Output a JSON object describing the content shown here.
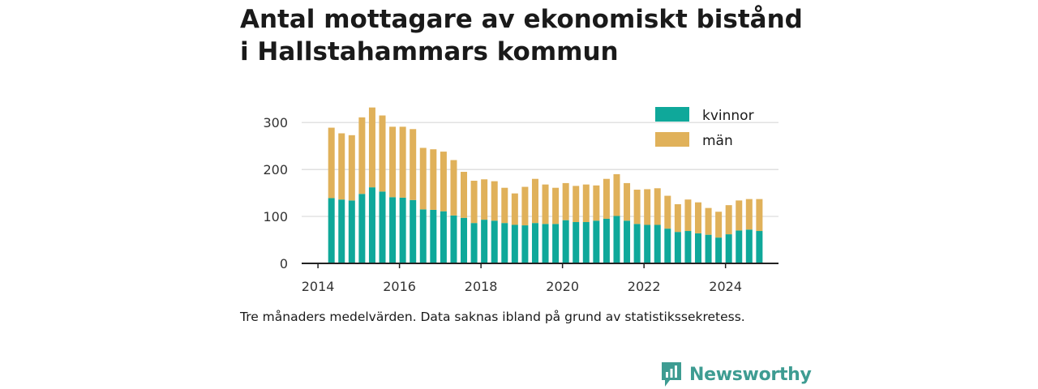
{
  "chart_data": {
    "type": "bar",
    "stacked": true,
    "title_lines": [
      "Antal mottagare av ekonomiskt bistånd",
      "i Hallstahammars kommun"
    ],
    "note": "Tre månaders medelvärden. Data saknas ibland på grund av statistikssekretess.",
    "xlabel": "",
    "ylabel": "",
    "ylim": [
      0,
      340
    ],
    "xlim": [
      2013.6,
      2025.3
    ],
    "y_ticks": [
      0,
      100,
      200,
      300
    ],
    "x_ticks": [
      2014,
      2016,
      2018,
      2020,
      2022,
      2024
    ],
    "grid": true,
    "legend_position": "top-right",
    "x": [
      2014.33,
      2014.58,
      2014.83,
      2015.08,
      2015.33,
      2015.58,
      2015.83,
      2016.08,
      2016.33,
      2016.58,
      2016.83,
      2017.08,
      2017.33,
      2017.58,
      2017.83,
      2018.08,
      2018.33,
      2018.58,
      2018.83,
      2019.08,
      2019.33,
      2019.58,
      2019.83,
      2020.08,
      2020.33,
      2020.58,
      2020.83,
      2021.08,
      2021.33,
      2021.58,
      2021.83,
      2022.08,
      2022.33,
      2022.58,
      2022.83,
      2023.08,
      2023.33,
      2023.58,
      2023.83,
      2024.08,
      2024.33,
      2024.58,
      2024.83
    ],
    "series": [
      {
        "name": "kvinnor",
        "color": "#0fa89a",
        "values": [
          139,
          136,
          134,
          148,
          162,
          153,
          141,
          140,
          135,
          115,
          114,
          111,
          102,
          97,
          86,
          93,
          91,
          86,
          82,
          81,
          86,
          84,
          84,
          92,
          88,
          88,
          91,
          95,
          101,
          91,
          84,
          82,
          82,
          74,
          67,
          69,
          64,
          61,
          55,
          62,
          70,
          72,
          69
        ]
      },
      {
        "name": "män",
        "color": "#e0b15a",
        "values": [
          150,
          141,
          139,
          163,
          170,
          162,
          150,
          151,
          151,
          131,
          129,
          127,
          118,
          98,
          90,
          86,
          84,
          75,
          67,
          82,
          94,
          84,
          77,
          79,
          77,
          80,
          75,
          85,
          89,
          80,
          73,
          76,
          78,
          70,
          59,
          67,
          66,
          57,
          55,
          62,
          64,
          65,
          68
        ]
      }
    ]
  },
  "brand": {
    "name": "Newsworthy",
    "icon": "newsworthy-logo-icon",
    "color": "#3e9c92"
  },
  "colors": {
    "axis": "#222222",
    "grid": "#d9d9d9",
    "text": "#1a1a1a"
  }
}
